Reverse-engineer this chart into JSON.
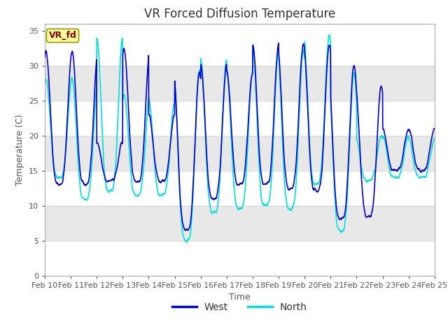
{
  "title": "VR Forced Diffusion Temperature",
  "xlabel": "Time",
  "ylabel": "Temperature (C)",
  "ylim": [
    0,
    36
  ],
  "legend_label": "VR_fd",
  "series": {
    "West": {
      "color": "#0000CD",
      "linewidth": 1.2
    },
    "North": {
      "color": "#00DDDD",
      "linewidth": 1.2
    }
  },
  "figure_bg": "#ffffff",
  "plot_bg": "#ffffff",
  "band_colors": [
    "#ffffff",
    "#e8e8e8"
  ],
  "yticks": [
    0,
    5,
    10,
    15,
    20,
    25,
    30,
    35
  ],
  "xtick_labels": [
    "Feb 10",
    "Feb 11",
    "Feb 12",
    "Feb 13",
    "Feb 14",
    "Feb 15",
    "Feb 16",
    "Feb 17",
    "Feb 18",
    "Feb 19",
    "Feb 20",
    "Feb 21",
    "Feb 22",
    "Feb 23",
    "Feb 24",
    "Feb 25"
  ],
  "title_fontsize": 12,
  "axis_fontsize": 9,
  "tick_fontsize": 8,
  "legend_fontsize": 10
}
